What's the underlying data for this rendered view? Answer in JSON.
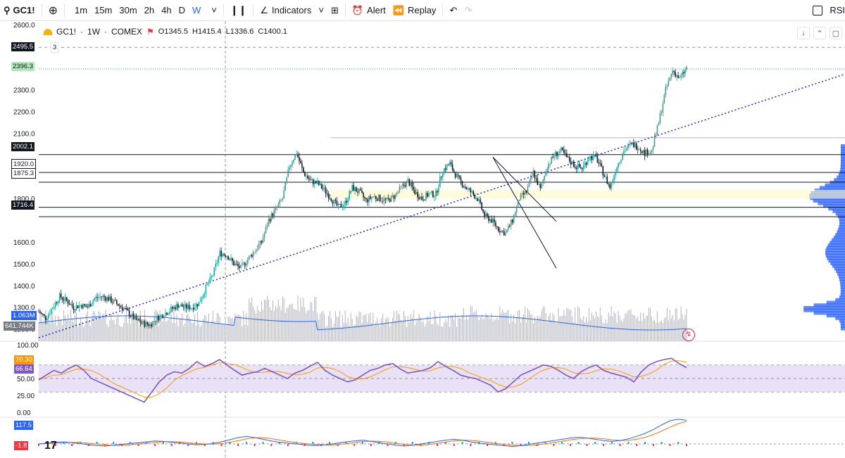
{
  "toolbar": {
    "symbol": "GC1!",
    "intervals": [
      "1m",
      "15m",
      "30m",
      "2h",
      "4h",
      "D",
      "W"
    ],
    "active_interval": "W",
    "indicators_label": "Indicators",
    "alert_label": "Alert",
    "replay_label": "Replay",
    "right_label": "RSI"
  },
  "legend": {
    "symbol": "GC1!",
    "interval": "1W",
    "exchange": "COMEX",
    "open": "O1345.5",
    "high": "H1415.4",
    "low": "L1336.6",
    "close": "C1400.1",
    "count_badge": "3"
  },
  "price_tags": {
    "top_line": "2495.5",
    "last_price": "2396.3",
    "levels": [
      "2002.1",
      "1920.0",
      "1875.3",
      "1716.4"
    ],
    "volume_1": "1.063M",
    "volume_2": "641.744K"
  },
  "rsi_tags": {
    "upper": "70.30",
    "current": "66.64"
  },
  "macd_tags": {
    "upper": "117.5",
    "lower": "-1.8"
  },
  "colors": {
    "candle_up": "#26a69a",
    "candle_down": "#131722",
    "trend_line": "#2934d6",
    "rsi_line": "#7e57c2",
    "rsi_signal": "#ff9800",
    "rsi_band": "#e9e2f6",
    "volume_bars": "#b2b5be",
    "volume_ma": "#2962ff",
    "volume_profile": "#2962ff",
    "last_price_bg": "#b3e6ba",
    "level_tag_bg": "#131722",
    "macd_line": "#2962ff",
    "macd_signal": "#ff6d00"
  },
  "chart_data": [
    {
      "type": "candlestick",
      "title": "GC1! · 1W · COMEX",
      "y_ticks": [
        2600,
        2500,
        2400,
        2300,
        2200,
        2100,
        2000,
        1900,
        1800,
        1700,
        1600,
        1500,
        1400,
        1300,
        1200
      ],
      "y_tick_labels": [
        "2600.0",
        "2300.0",
        "2200.0",
        "2100.0",
        "1800.0",
        "1600.0",
        "1500.0",
        "1400.0",
        "1300.0",
        "1200.0"
      ],
      "ylim": [
        1160,
        2600
      ],
      "horizontal_levels": [
        2002.1,
        1920.0,
        1875.3,
        1716.4
      ],
      "price_path": [
        [
          0,
          1280
        ],
        [
          5,
          1250
        ],
        [
          10,
          1300
        ],
        [
          15,
          1350
        ],
        [
          20,
          1330
        ],
        [
          25,
          1300
        ],
        [
          30,
          1310
        ],
        [
          35,
          1300
        ],
        [
          40,
          1340
        ],
        [
          45,
          1350
        ],
        [
          50,
          1340
        ],
        [
          55,
          1320
        ],
        [
          60,
          1300
        ],
        [
          65,
          1270
        ],
        [
          70,
          1240
        ],
        [
          75,
          1225
        ],
        [
          80,
          1220
        ],
        [
          85,
          1250
        ],
        [
          90,
          1270
        ],
        [
          95,
          1290
        ],
        [
          100,
          1310
        ],
        [
          105,
          1300
        ],
        [
          110,
          1300
        ],
        [
          115,
          1320
        ],
        [
          120,
          1390
        ],
        [
          125,
          1450
        ],
        [
          130,
          1550
        ],
        [
          135,
          1540
        ],
        [
          140,
          1500
        ],
        [
          145,
          1480
        ],
        [
          150,
          1520
        ],
        [
          155,
          1560
        ],
        [
          160,
          1600
        ],
        [
          165,
          1700
        ],
        [
          170,
          1750
        ],
        [
          175,
          1800
        ],
        [
          180,
          1950
        ],
        [
          185,
          2010
        ],
        [
          190,
          1920
        ],
        [
          195,
          1880
        ],
        [
          200,
          1870
        ],
        [
          205,
          1840
        ],
        [
          210,
          1800
        ],
        [
          215,
          1760
        ],
        [
          220,
          1780
        ],
        [
          225,
          1850
        ],
        [
          230,
          1830
        ],
        [
          235,
          1790
        ],
        [
          240,
          1810
        ],
        [
          245,
          1800
        ],
        [
          250,
          1790
        ],
        [
          255,
          1810
        ],
        [
          260,
          1850
        ],
        [
          265,
          1880
        ],
        [
          270,
          1830
        ],
        [
          275,
          1800
        ],
        [
          280,
          1820
        ],
        [
          285,
          1820
        ],
        [
          290,
          1930
        ],
        [
          295,
          1960
        ],
        [
          300,
          1900
        ],
        [
          305,
          1860
        ],
        [
          310,
          1830
        ],
        [
          315,
          1800
        ],
        [
          320,
          1720
        ],
        [
          325,
          1700
        ],
        [
          330,
          1660
        ],
        [
          335,
          1640
        ],
        [
          340,
          1700
        ],
        [
          345,
          1800
        ],
        [
          350,
          1830
        ],
        [
          355,
          1920
        ],
        [
          360,
          1840
        ],
        [
          365,
          1950
        ],
        [
          370,
          2000
        ],
        [
          375,
          2020
        ],
        [
          380,
          1980
        ],
        [
          385,
          1950
        ],
        [
          390,
          1940
        ],
        [
          395,
          1990
        ],
        [
          400,
          1990
        ],
        [
          405,
          1920
        ],
        [
          410,
          1850
        ],
        [
          415,
          1950
        ],
        [
          420,
          2020
        ],
        [
          425,
          2050
        ],
        [
          430,
          2040
        ],
        [
          435,
          2010
        ],
        [
          440,
          2020
        ],
        [
          445,
          2150
        ],
        [
          450,
          2300
        ],
        [
          455,
          2390
        ],
        [
          460,
          2350
        ],
        [
          465,
          2400
        ]
      ],
      "trend_line": [
        [
          0,
          1160
        ],
        [
          1200,
          2560
        ]
      ],
      "channel_lines": [
        [
          [
            700,
            1990
          ],
          [
            790,
            1695
          ]
        ],
        [
          [
            700,
            1990
          ],
          [
            795,
            1475
          ]
        ]
      ]
    },
    {
      "type": "line",
      "title": "RSI",
      "y_tick_labels": [
        "100.00",
        "50.00",
        "25.00",
        "0.00"
      ],
      "ylim": [
        0,
        100
      ],
      "band": [
        30,
        70
      ],
      "series": [
        {
          "values": [
            48,
            55,
            62,
            58,
            65,
            70,
            62,
            50,
            45,
            40,
            35,
            30,
            25,
            20,
            15,
            30,
            45,
            55,
            60,
            58,
            65,
            75,
            68,
            72,
            78,
            70,
            62,
            55,
            58,
            60,
            65,
            60,
            55,
            50,
            58,
            62,
            68,
            74,
            62,
            55,
            50,
            45,
            48,
            55,
            62,
            65,
            70,
            72,
            64,
            58,
            60,
            62,
            66,
            75,
            68,
            62,
            55,
            52,
            50,
            45,
            40,
            30,
            35,
            45,
            55,
            60,
            65,
            70,
            68,
            62,
            55,
            50,
            60,
            66,
            70,
            62,
            58,
            55,
            52,
            45,
            60,
            70,
            75,
            78,
            80,
            72,
            66
          ]
        }
      ]
    },
    {
      "type": "line",
      "title": "MACD",
      "y_tick_labels": [
        "117.5",
        "-1.8"
      ],
      "series": [
        {
          "values": [
            0,
            4,
            8,
            10,
            6,
            2,
            -4,
            -8,
            -10,
            -6,
            -2,
            2,
            6,
            10,
            14,
            12,
            8,
            4,
            0,
            -4,
            -2,
            2,
            10,
            20,
            30,
            36,
            30,
            22,
            14,
            8,
            4,
            0,
            -4,
            -8,
            -6,
            -2,
            4,
            10,
            14,
            18,
            12,
            6,
            0,
            -6,
            -10,
            -6,
            0,
            6,
            12,
            18,
            22,
            18,
            10,
            4,
            0,
            -4,
            -8,
            -12,
            -8,
            -2,
            4,
            10,
            16,
            22,
            28,
            32,
            28,
            22,
            16,
            12,
            16,
            24,
            36,
            50,
            68,
            90,
            110,
            117,
            112
          ]
        }
      ]
    }
  ]
}
